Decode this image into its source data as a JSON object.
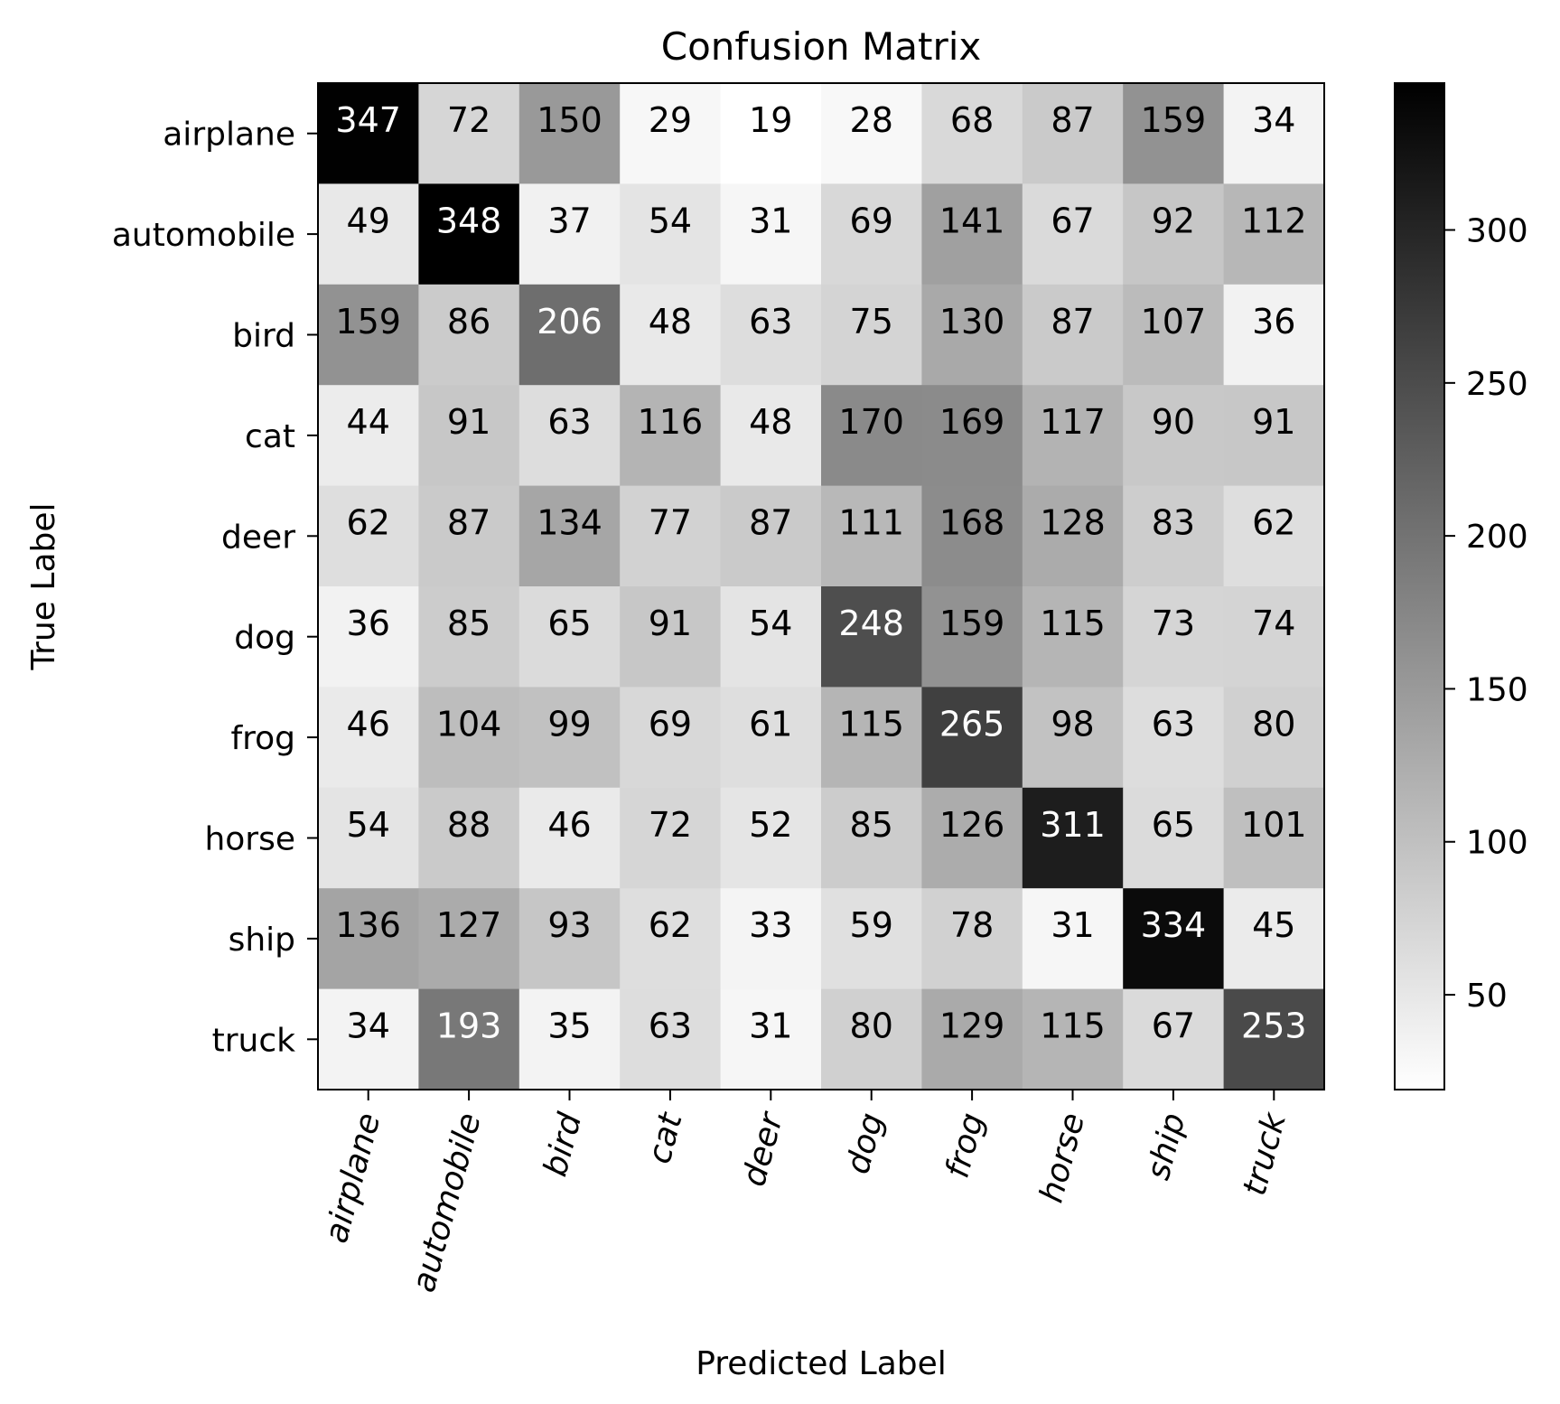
{
  "chart_data": {
    "type": "heatmap",
    "title": "Confusion Matrix",
    "xlabel": "Predicted Label",
    "ylabel": "True Label",
    "x_categories": [
      "airplane",
      "automobile",
      "bird",
      "cat",
      "deer",
      "dog",
      "frog",
      "horse",
      "ship",
      "truck"
    ],
    "y_categories": [
      "airplane",
      "automobile",
      "bird",
      "cat",
      "deer",
      "dog",
      "frog",
      "horse",
      "ship",
      "truck"
    ],
    "values": [
      [
        347,
        72,
        150,
        29,
        19,
        28,
        68,
        87,
        159,
        34
      ],
      [
        49,
        348,
        37,
        54,
        31,
        69,
        141,
        67,
        92,
        112
      ],
      [
        159,
        86,
        206,
        48,
        63,
        75,
        130,
        87,
        107,
        36
      ],
      [
        44,
        91,
        63,
        116,
        48,
        170,
        169,
        117,
        90,
        91
      ],
      [
        62,
        87,
        134,
        77,
        87,
        111,
        168,
        128,
        83,
        62
      ],
      [
        36,
        85,
        65,
        91,
        54,
        248,
        159,
        115,
        73,
        74
      ],
      [
        46,
        104,
        99,
        69,
        61,
        115,
        265,
        98,
        63,
        80
      ],
      [
        54,
        88,
        46,
        72,
        52,
        85,
        126,
        311,
        65,
        101
      ],
      [
        136,
        127,
        93,
        62,
        33,
        59,
        78,
        31,
        334,
        45
      ],
      [
        34,
        193,
        35,
        63,
        31,
        80,
        129,
        115,
        67,
        253
      ]
    ],
    "colormap": "Greys",
    "value_range": [
      19,
      348
    ],
    "colorbar_ticks": [
      50,
      100,
      150,
      200,
      250,
      300
    ],
    "x_tick_rotation_deg": 75,
    "grid": false
  }
}
